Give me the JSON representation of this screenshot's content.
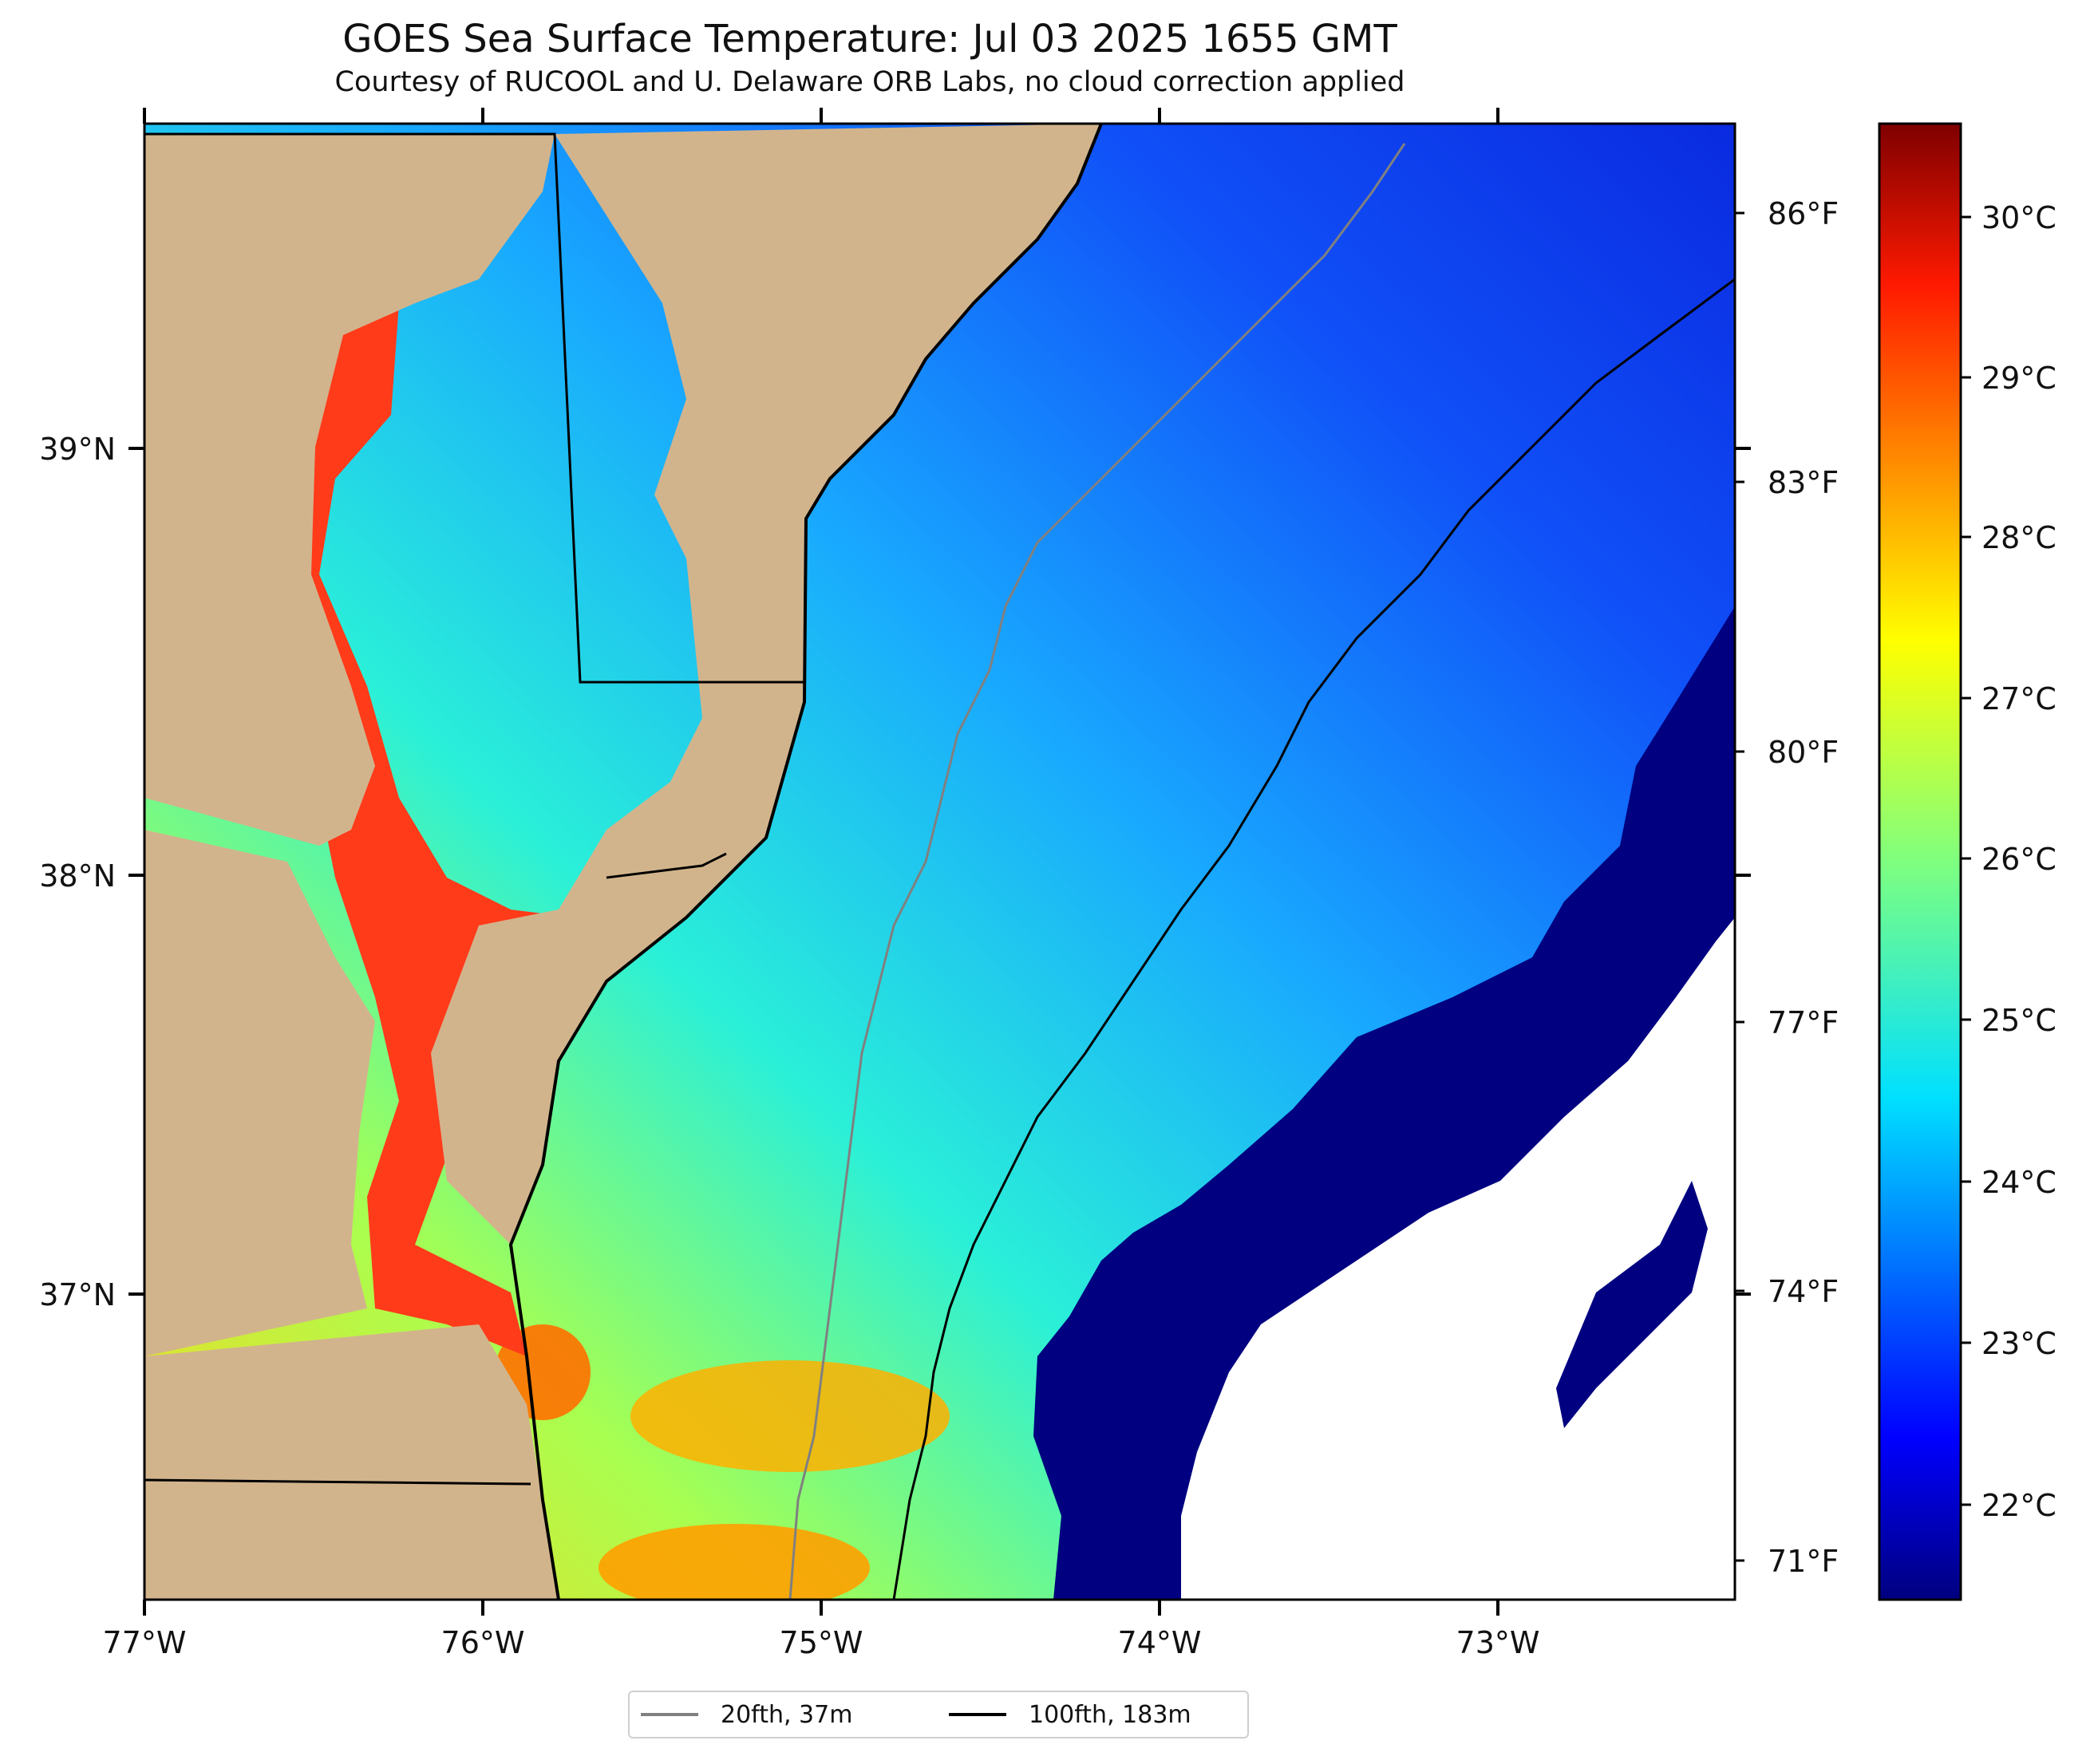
{
  "title": "GOES Sea Surface Temperature: Jul 03 2025 1655 GMT",
  "subtitle": "Courtesy of RUCOOL and U. Delaware ORB Labs, no cloud correction applied",
  "map": {
    "extent": {
      "lon_min": -77.0,
      "lon_max": -72.3,
      "lat_min": 36.3,
      "lat_max": 39.8
    },
    "lon_ticks": [
      "77°W",
      "76°W",
      "75°W",
      "74°W",
      "73°W"
    ],
    "lat_ticks": [
      "39°N",
      "38°N",
      "37°N"
    ],
    "land_color": "#d2b48c",
    "cloud_color": "#ffffff",
    "coast_color": "#000000"
  },
  "colorbar": {
    "colormap": "jet",
    "range_c": [
      21.5,
      30.5
    ],
    "celsius_labels": [
      "30°C",
      "29°C",
      "28°C",
      "27°C",
      "26°C",
      "25°C",
      "24°C",
      "23°C",
      "22°C"
    ],
    "fahrenheit_labels": [
      "86°F",
      "83°F",
      "80°F",
      "77°F",
      "74°F",
      "71°F"
    ]
  },
  "legend": [
    {
      "label": "20fth, 37m",
      "color": "#808080"
    },
    {
      "label": "100fth, 183m",
      "color": "#000000"
    }
  ]
}
